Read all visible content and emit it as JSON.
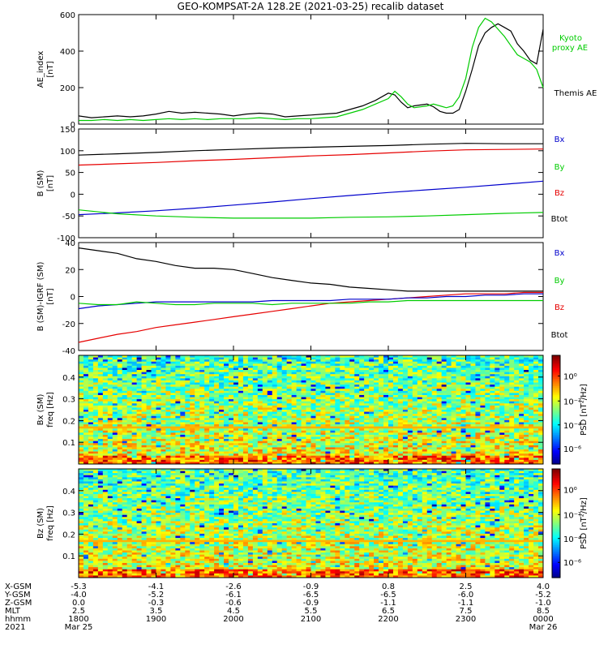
{
  "title": "GEO-KOMPSAT-2A 128.2E (2021-03-25) recalib dataset",
  "colors": {
    "black": "#000000",
    "red": "#e60000",
    "green": "#00cc00",
    "blue": "#0000cc"
  },
  "chart_data": [
    {
      "type": "line",
      "ylabel": "AE_index",
      "yunit": "[nT]",
      "ylim": [
        0,
        600
      ],
      "yticks": [
        0,
        200,
        400,
        600
      ],
      "x": [
        1800,
        1810,
        1820,
        1830,
        1840,
        1850,
        1900,
        1910,
        1920,
        1930,
        1940,
        1950,
        2000,
        2010,
        2020,
        2030,
        2040,
        2050,
        2100,
        2110,
        2120,
        2130,
        2140,
        2150,
        2200,
        2205,
        2210,
        2215,
        2220,
        2230,
        2235,
        2240,
        2245,
        2250,
        2255,
        2300,
        2305,
        2310,
        2315,
        2320,
        2325,
        2330,
        2335,
        2340,
        2345,
        2350,
        2355,
        2400
      ],
      "series": [
        {
          "name": "Themis AE",
          "color": "#000000",
          "values": [
            45,
            35,
            40,
            45,
            40,
            45,
            55,
            70,
            60,
            65,
            60,
            55,
            45,
            55,
            60,
            55,
            40,
            45,
            50,
            55,
            60,
            80,
            100,
            130,
            170,
            160,
            120,
            90,
            100,
            110,
            95,
            70,
            60,
            60,
            80,
            180,
            300,
            430,
            500,
            530,
            550,
            530,
            510,
            440,
            400,
            350,
            330,
            520
          ]
        },
        {
          "name": "Kyoto proxy AE",
          "color": "#00cc00",
          "values": [
            20,
            20,
            25,
            20,
            25,
            20,
            25,
            30,
            25,
            30,
            25,
            30,
            30,
            30,
            35,
            30,
            25,
            30,
            30,
            35,
            40,
            60,
            80,
            110,
            140,
            180,
            150,
            110,
            90,
            100,
            110,
            100,
            90,
            100,
            150,
            250,
            420,
            530,
            580,
            560,
            520,
            480,
            430,
            380,
            360,
            340,
            300,
            200
          ]
        }
      ],
      "legend": [
        "Kyoto",
        "proxy AE",
        "Themis AE"
      ]
    },
    {
      "type": "line",
      "ylabel": "B (SM)",
      "yunit": "[nT]",
      "ylim": [
        -100,
        150
      ],
      "yticks": [
        -100,
        -50,
        0,
        50,
        100,
        150
      ],
      "x": [
        1800,
        1830,
        1900,
        1930,
        2000,
        2030,
        2100,
        2130,
        2200,
        2230,
        2300,
        2330,
        2400
      ],
      "series": [
        {
          "name": "Btot",
          "color": "#000000",
          "values": [
            90,
            93,
            96,
            100,
            103,
            106,
            108,
            110,
            112,
            115,
            117,
            116,
            116
          ]
        },
        {
          "name": "Bz",
          "color": "#e60000",
          "values": [
            67,
            70,
            73,
            77,
            80,
            84,
            88,
            91,
            95,
            99,
            102,
            103,
            104
          ]
        },
        {
          "name": "Bx",
          "color": "#0000cc",
          "values": [
            -47,
            -43,
            -38,
            -32,
            -25,
            -18,
            -10,
            -3,
            4,
            10,
            16,
            23,
            30
          ]
        },
        {
          "name": "By",
          "color": "#00cc00",
          "values": [
            -36,
            -45,
            -50,
            -53,
            -55,
            -55,
            -55,
            -53,
            -52,
            -50,
            -47,
            -44,
            -42
          ]
        }
      ],
      "legend": [
        "Bx",
        "By",
        "Bz",
        "Btot"
      ]
    },
    {
      "type": "line",
      "ylabel": "B (SM)-IGRF (SM)",
      "yunit": "[nT]",
      "ylim": [
        -40,
        40
      ],
      "yticks": [
        -40,
        -20,
        0,
        20,
        40
      ],
      "x": [
        1800,
        1815,
        1830,
        1845,
        1900,
        1915,
        1930,
        1945,
        2000,
        2015,
        2030,
        2045,
        2100,
        2115,
        2130,
        2145,
        2200,
        2215,
        2230,
        2245,
        2300,
        2315,
        2330,
        2345,
        2400
      ],
      "series": [
        {
          "name": "Btot",
          "color": "#000000",
          "values": [
            36,
            34,
            32,
            28,
            26,
            23,
            21,
            21,
            20,
            17,
            14,
            12,
            10,
            9,
            7,
            6,
            5,
            4,
            4,
            4,
            4,
            4,
            4,
            4,
            4
          ]
        },
        {
          "name": "Bz",
          "color": "#e60000",
          "values": [
            -34,
            -31,
            -28,
            -26,
            -23,
            -21,
            -19,
            -17,
            -15,
            -13,
            -11,
            -9,
            -7,
            -5,
            -4,
            -3,
            -2,
            -1,
            0,
            1,
            2,
            2,
            2,
            3,
            3
          ]
        },
        {
          "name": "Bx",
          "color": "#0000cc",
          "values": [
            -9,
            -7,
            -6,
            -5,
            -4,
            -4,
            -4,
            -4,
            -4,
            -4,
            -3,
            -3,
            -3,
            -3,
            -2,
            -2,
            -2,
            -1,
            -1,
            0,
            0,
            1,
            1,
            2,
            2
          ]
        },
        {
          "name": "By",
          "color": "#00cc00",
          "values": [
            -5,
            -6,
            -6,
            -4,
            -5,
            -6,
            -6,
            -5,
            -5,
            -5,
            -6,
            -5,
            -5,
            -5,
            -5,
            -4,
            -4,
            -3,
            -3,
            -3,
            -3,
            -3,
            -3,
            -3,
            -3
          ]
        }
      ],
      "legend": [
        "Bx",
        "By",
        "Bz",
        "Btot"
      ]
    },
    {
      "type": "heatmap",
      "ylabel": "Bx (SM)",
      "yunit": "freq [Hz]",
      "ylim": [
        0,
        0.5
      ],
      "yticks": [
        0.1,
        0.2,
        0.3,
        0.4
      ],
      "colorbar_label": "PSD [nT²/Hz]",
      "colorbar_ticks": [
        "10⁰",
        "10⁻²",
        "10⁻⁴",
        "10⁻⁶"
      ],
      "notable_band_hz": 0.17
    },
    {
      "type": "heatmap",
      "ylabel": "Bz (SM)",
      "yunit": "freq [Hz]",
      "ylim": [
        0,
        0.5
      ],
      "yticks": [
        0.1,
        0.2,
        0.3,
        0.4
      ],
      "colorbar_label": "PSD [nT²/Hz]",
      "colorbar_ticks": [
        "10⁰",
        "10⁻²",
        "10⁻⁴",
        "10⁻⁶"
      ],
      "notable_band_hz": 0.17
    }
  ],
  "xaxis": {
    "row_labels": [
      "X-GSM",
      "Y-GSM",
      "Z-GSM",
      "MLT",
      "hhmm",
      "2021"
    ],
    "columns": [
      [
        "-5.3",
        "-4.0",
        "0.0",
        "2.5",
        "1800",
        "Mar 25"
      ],
      [
        "-4.1",
        "-5.2",
        "-0.3",
        "3.5",
        "1900",
        ""
      ],
      [
        "-2.6",
        "-6.1",
        "-0.6",
        "4.5",
        "2000",
        ""
      ],
      [
        "-0.9",
        "-6.5",
        "-0.9",
        "5.5",
        "2100",
        ""
      ],
      [
        "0.8",
        "-6.5",
        "-1.1",
        "6.5",
        "2200",
        ""
      ],
      [
        "2.5",
        "-6.0",
        "-1.1",
        "7.5",
        "2300",
        ""
      ],
      [
        "4.0",
        "-5.2",
        "-1.0",
        "8.5",
        "0000",
        "Mar 26"
      ]
    ]
  }
}
